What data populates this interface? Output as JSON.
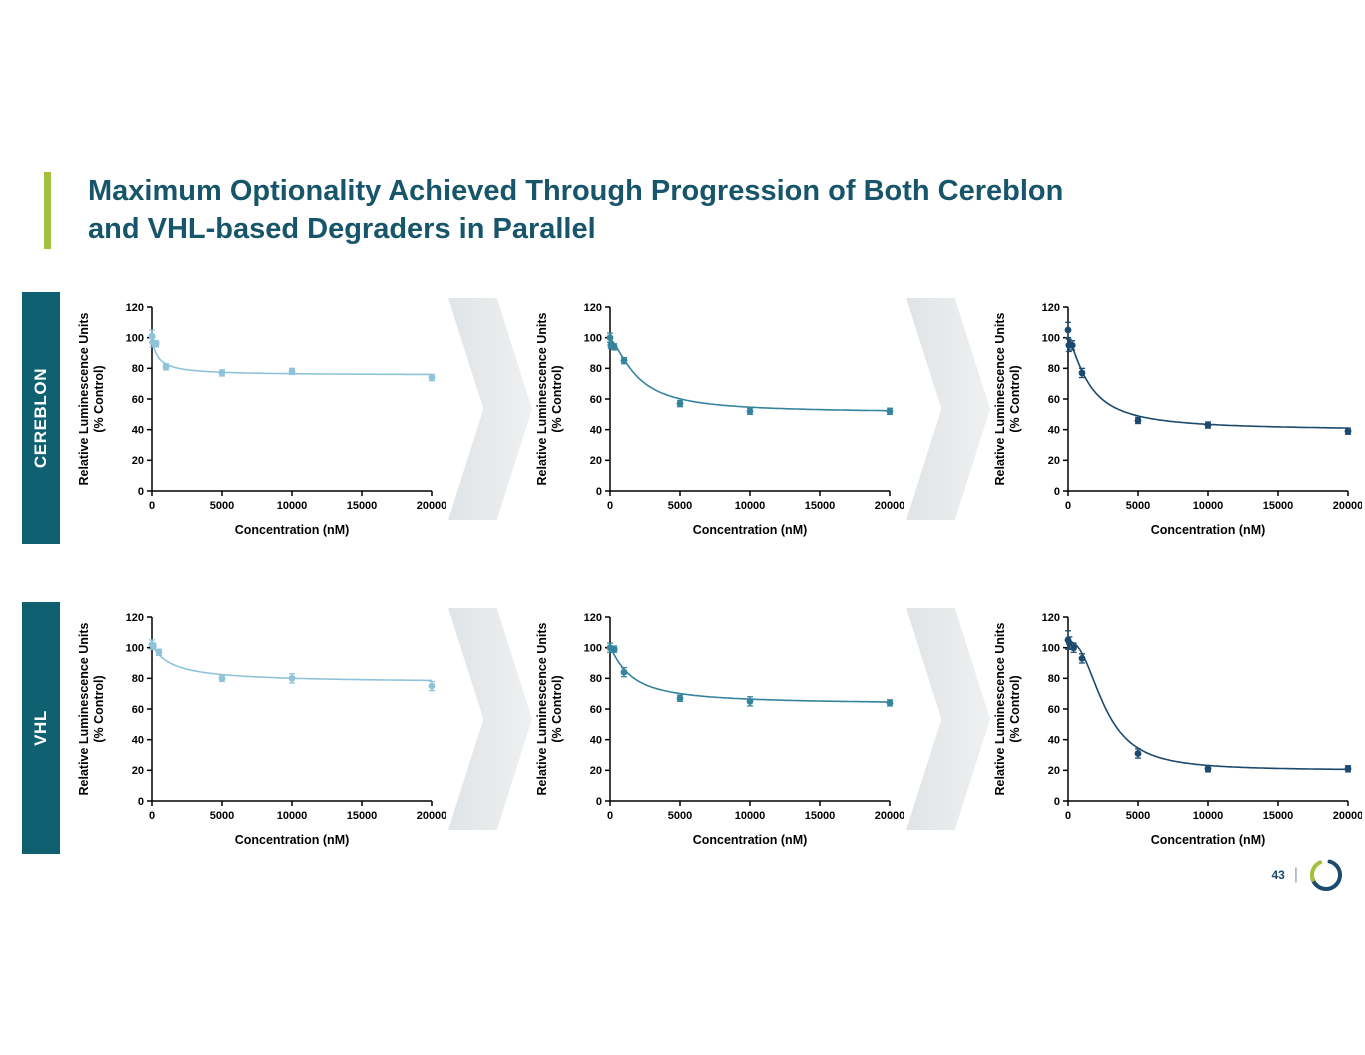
{
  "slide": {
    "title_line1": "Maximum Optionality Achieved Through Progression of Both Cereblon",
    "title_line2": "and VHL-based Degraders in Parallel",
    "page_number": "43",
    "footer_divider": "|"
  },
  "rows": [
    {
      "label": "CEREBLON"
    },
    {
      "label": "VHL"
    }
  ],
  "colors": {
    "title": "#17556b",
    "accent_green": "#a3c13c",
    "row_label_bg": "#0f6071",
    "chevron": "#e8eaec",
    "series_light": "#8fc3da",
    "series_mid": "#35849e",
    "series_dark": "#1c4a6e",
    "logo_navy": "#1c4a6e",
    "logo_green": "#a3c13c"
  },
  "chart_data": [
    {
      "type": "scatter",
      "row": "CEREBLON",
      "step": 1,
      "xlabel": "Concentration (nM)",
      "ylabel_line1": "Relative Luminescence Units",
      "ylabel_line2": "(% Control)",
      "xlim": [
        0,
        20000
      ],
      "ylim": [
        0,
        120
      ],
      "xticks": [
        0,
        5000,
        10000,
        15000,
        20000
      ],
      "yticks": [
        0,
        20,
        40,
        60,
        80,
        100,
        120
      ],
      "color": "#8fc3da",
      "points": [
        {
          "x": 0,
          "y": 101,
          "e": 4
        },
        {
          "x": 50,
          "y": 97,
          "e": 3
        },
        {
          "x": 300,
          "y": 96,
          "e": 2
        },
        {
          "x": 1000,
          "y": 81,
          "e": 2
        },
        {
          "x": 5000,
          "y": 77,
          "e": 2
        },
        {
          "x": 10000,
          "y": 78,
          "e": 2
        },
        {
          "x": 20000,
          "y": 74,
          "e": 2
        }
      ],
      "curve": {
        "top": 99,
        "bottom": 75.5,
        "ec50": 450,
        "hill": 1.0
      }
    },
    {
      "type": "scatter",
      "row": "CEREBLON",
      "step": 2,
      "xlabel": "Concentration (nM)",
      "ylabel_line1": "Relative Luminescence Units",
      "ylabel_line2": "(% Control)",
      "xlim": [
        0,
        20000
      ],
      "ylim": [
        0,
        120
      ],
      "xticks": [
        0,
        5000,
        10000,
        15000,
        20000
      ],
      "yticks": [
        0,
        20,
        40,
        60,
        80,
        100,
        120
      ],
      "color": "#35849e",
      "points": [
        {
          "x": 0,
          "y": 100,
          "e": 3
        },
        {
          "x": 60,
          "y": 95,
          "e": 2
        },
        {
          "x": 300,
          "y": 94,
          "e": 2
        },
        {
          "x": 1000,
          "y": 85,
          "e": 2
        },
        {
          "x": 5000,
          "y": 57,
          "e": 2
        },
        {
          "x": 10000,
          "y": 52,
          "e": 2
        },
        {
          "x": 20000,
          "y": 52,
          "e": 2
        }
      ],
      "curve": {
        "top": 99,
        "bottom": 51,
        "ec50": 1900,
        "hill": 1.5
      }
    },
    {
      "type": "scatter",
      "row": "CEREBLON",
      "step": 3,
      "xlabel": "Concentration (nM)",
      "ylabel_line1": "Relative Luminescence Units",
      "ylabel_line2": "(% Control)",
      "xlim": [
        0,
        20000
      ],
      "ylim": [
        0,
        120
      ],
      "xticks": [
        0,
        5000,
        10000,
        15000,
        20000
      ],
      "yticks": [
        0,
        20,
        40,
        60,
        80,
        100,
        120
      ],
      "color": "#1c4a6e",
      "points": [
        {
          "x": 0,
          "y": 105,
          "e": 5
        },
        {
          "x": 60,
          "y": 95,
          "e": 4
        },
        {
          "x": 300,
          "y": 95,
          "e": 3
        },
        {
          "x": 1000,
          "y": 77,
          "e": 3
        },
        {
          "x": 5000,
          "y": 46,
          "e": 2
        },
        {
          "x": 10000,
          "y": 43,
          "e": 2
        },
        {
          "x": 20000,
          "y": 39,
          "e": 2
        }
      ],
      "curve": {
        "top": 100,
        "bottom": 39.5,
        "ec50": 1500,
        "hill": 1.4
      }
    },
    {
      "type": "scatter",
      "row": "VHL",
      "step": 1,
      "xlabel": "Concentration (nM)",
      "ylabel_line1": "Relative Luminescence Units",
      "ylabel_line2": "(% Control)",
      "xlim": [
        0,
        20000
      ],
      "ylim": [
        0,
        120
      ],
      "xticks": [
        0,
        5000,
        10000,
        15000,
        20000
      ],
      "yticks": [
        0,
        20,
        40,
        60,
        80,
        100,
        120
      ],
      "color": "#8fc3da",
      "points": [
        {
          "x": 0,
          "y": 102,
          "e": 3
        },
        {
          "x": 100,
          "y": 101,
          "e": 2
        },
        {
          "x": 500,
          "y": 97,
          "e": 2
        },
        {
          "x": 5000,
          "y": 80,
          "e": 2
        },
        {
          "x": 10000,
          "y": 80,
          "e": 3
        },
        {
          "x": 20000,
          "y": 75,
          "e": 3
        }
      ],
      "curve": {
        "top": 102,
        "bottom": 77,
        "ec50": 1400,
        "hill": 1.0
      }
    },
    {
      "type": "scatter",
      "row": "VHL",
      "step": 2,
      "xlabel": "Concentration (nM)",
      "ylabel_line1": "Relative Luminescence Units",
      "ylabel_line2": "(% Control)",
      "xlim": [
        0,
        20000
      ],
      "ylim": [
        0,
        120
      ],
      "xticks": [
        0,
        5000,
        10000,
        15000,
        20000
      ],
      "yticks": [
        0,
        20,
        40,
        60,
        80,
        100,
        120
      ],
      "color": "#35849e",
      "points": [
        {
          "x": 0,
          "y": 100,
          "e": 3
        },
        {
          "x": 300,
          "y": 99,
          "e": 2
        },
        {
          "x": 1000,
          "y": 84,
          "e": 3
        },
        {
          "x": 5000,
          "y": 67,
          "e": 2
        },
        {
          "x": 10000,
          "y": 65,
          "e": 3
        },
        {
          "x": 20000,
          "y": 64,
          "e": 2
        }
      ],
      "curve": {
        "top": 100,
        "bottom": 63,
        "ec50": 1500,
        "hill": 1.2
      }
    },
    {
      "type": "scatter",
      "row": "VHL",
      "step": 3,
      "xlabel": "Concentration (nM)",
      "ylabel_line1": "Relative Luminescence Units",
      "ylabel_line2": "(% Control)",
      "xlim": [
        0,
        20000
      ],
      "ylim": [
        0,
        120
      ],
      "xticks": [
        0,
        5000,
        10000,
        15000,
        20000
      ],
      "yticks": [
        0,
        20,
        40,
        60,
        80,
        100,
        120
      ],
      "color": "#1c4a6e",
      "points": [
        {
          "x": 0,
          "y": 105,
          "e": 6
        },
        {
          "x": 100,
          "y": 103,
          "e": 4
        },
        {
          "x": 400,
          "y": 100,
          "e": 3
        },
        {
          "x": 1000,
          "y": 93,
          "e": 3
        },
        {
          "x": 5000,
          "y": 31,
          "e": 3
        },
        {
          "x": 10000,
          "y": 21,
          "e": 2
        },
        {
          "x": 20000,
          "y": 21,
          "e": 2
        }
      ],
      "curve": {
        "top": 104,
        "bottom": 20,
        "ec50": 2600,
        "hill": 2.4
      }
    }
  ]
}
